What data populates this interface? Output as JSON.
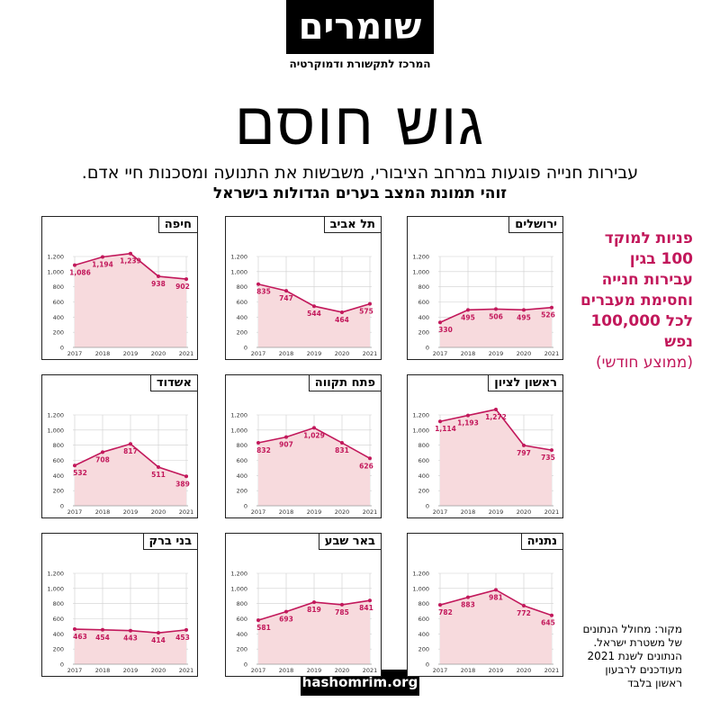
{
  "header": {
    "logo_text": "שומרים",
    "logo_subtitle": "המרכז לתקשורת ודמוקרטיה",
    "title": "גוש חוסם",
    "subtitle_line1": "עבירות חנייה פוגעות במרחב הציבורי, משבשות את התנועה ומסכנות חיי אדם.",
    "subtitle_line2": "זוהי תמונת המצב בערים הגדולות בישראל"
  },
  "sidebar": {
    "heading": "פניות למוקד 100 בגין עבירות חנייה וחסימת מעברים לכל 100,000 נפש",
    "heading_note": "(ממוצע חודשי)",
    "source": "מקור: מחולל הנתונים של משטרת ישראל. הנתונים לשנת 2021 מעודכנים לרבעון ראשון בלבד"
  },
  "footer": {
    "site": "hashomrim.org"
  },
  "colors": {
    "line": "#c2185b",
    "fill": "#f7dadd",
    "grid": "#cfcfcf"
  },
  "chart_data": [
    {
      "type": "area",
      "city": "חיפה",
      "x": [
        "2017",
        "2018",
        "2019",
        "2020",
        "2021"
      ],
      "values": [
        1086,
        1194,
        1239,
        938,
        902
      ],
      "ylim": [
        0,
        1200
      ],
      "yticks": [
        "0",
        "200",
        "400",
        "600",
        "800",
        "1,000",
        "1,200"
      ],
      "labels": [
        "1,086",
        "1,194",
        "1,239",
        "938",
        "902"
      ]
    },
    {
      "type": "area",
      "city": "תל אביב",
      "x": [
        "2017",
        "2018",
        "2019",
        "2020",
        "2021"
      ],
      "values": [
        835,
        747,
        544,
        464,
        575
      ],
      "ylim": [
        0,
        1200
      ],
      "yticks": [
        "0",
        "200",
        "400",
        "600",
        "800",
        "1,000",
        "1,200"
      ],
      "labels": [
        "835",
        "747",
        "544",
        "464",
        "575"
      ]
    },
    {
      "type": "area",
      "city": "ירושלים",
      "x": [
        "2017",
        "2018",
        "2019",
        "2020",
        "2021"
      ],
      "values": [
        330,
        495,
        506,
        495,
        526
      ],
      "ylim": [
        0,
        1200
      ],
      "yticks": [
        "0",
        "200",
        "400",
        "600",
        "800",
        "1,000",
        "1,200"
      ],
      "labels": [
        "330",
        "495",
        "506",
        "495",
        "526"
      ]
    },
    {
      "type": "area",
      "city": "אשדוד",
      "x": [
        "2017",
        "2018",
        "2019",
        "2020",
        "2021"
      ],
      "values": [
        532,
        708,
        817,
        511,
        389
      ],
      "ylim": [
        0,
        1200
      ],
      "yticks": [
        "0",
        "200",
        "400",
        "600",
        "800",
        "1,000",
        "1,200"
      ],
      "labels": [
        "532",
        "708",
        "817",
        "511",
        "389"
      ]
    },
    {
      "type": "area",
      "city": "פתח תקווה",
      "x": [
        "2017",
        "2018",
        "2019",
        "2020",
        "2021"
      ],
      "values": [
        832,
        907,
        1029,
        831,
        626
      ],
      "ylim": [
        0,
        1200
      ],
      "yticks": [
        "0",
        "200",
        "400",
        "600",
        "800",
        "1,000",
        "1,200"
      ],
      "labels": [
        "832",
        "907",
        "1,029",
        "831",
        "626"
      ]
    },
    {
      "type": "area",
      "city": "ראשון לציון",
      "x": [
        "2017",
        "2018",
        "2019",
        "2020",
        "2021"
      ],
      "values": [
        1114,
        1193,
        1272,
        797,
        735
      ],
      "ylim": [
        0,
        1200
      ],
      "yticks": [
        "0",
        "200",
        "400",
        "600",
        "800",
        "1,000",
        "1,200"
      ],
      "labels": [
        "1,114",
        "1,193",
        "1,272",
        "797",
        "735"
      ]
    },
    {
      "type": "area",
      "city": "בני ברק",
      "x": [
        "2017",
        "2018",
        "2019",
        "2020",
        "2021"
      ],
      "values": [
        463,
        454,
        443,
        414,
        453
      ],
      "ylim": [
        0,
        1200
      ],
      "yticks": [
        "0",
        "200",
        "400",
        "600",
        "800",
        "1,000",
        "1,200"
      ],
      "labels": [
        "463",
        "454",
        "443",
        "414",
        "453"
      ]
    },
    {
      "type": "area",
      "city": "באר שבע",
      "x": [
        "2017",
        "2018",
        "2019",
        "2020",
        "2021"
      ],
      "values": [
        581,
        693,
        819,
        785,
        841
      ],
      "ylim": [
        0,
        1200
      ],
      "yticks": [
        "0",
        "200",
        "400",
        "600",
        "800",
        "1,000",
        "1,200"
      ],
      "labels": [
        "581",
        "693",
        "819",
        "785",
        "841"
      ]
    },
    {
      "type": "area",
      "city": "נתניה",
      "x": [
        "2017",
        "2018",
        "2019",
        "2020",
        "2021"
      ],
      "values": [
        782,
        883,
        981,
        772,
        645
      ],
      "ylim": [
        0,
        1200
      ],
      "yticks": [
        "0",
        "200",
        "400",
        "600",
        "800",
        "1,000",
        "1,200"
      ],
      "labels": [
        "782",
        "883",
        "981",
        "772",
        "645"
      ]
    }
  ]
}
